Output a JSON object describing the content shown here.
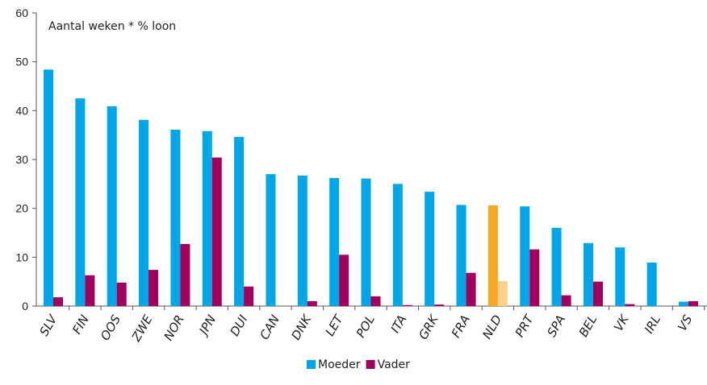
{
  "chart_data": {
    "type": "bar",
    "title": "",
    "annotation": "Aantal weken * % loon",
    "xlabel": "",
    "ylabel": "",
    "ylim": [
      0,
      60
    ],
    "yticks": [
      0,
      10,
      20,
      30,
      40,
      50,
      60
    ],
    "grid": false,
    "legend_position": "bottom-center",
    "categories": [
      "SLV",
      "FIN",
      "OOS",
      "ZWE",
      "NOR",
      "JPN",
      "DUI",
      "CAN",
      "DNK",
      "LET",
      "POL",
      "ITA",
      "GRK",
      "FRA",
      "NLD",
      "PRT",
      "SPA",
      "BEL",
      "VK",
      "IRL",
      "VS"
    ],
    "highlight_category": "NLD",
    "series": [
      {
        "name": "Moeder",
        "color": "#00a6e8",
        "highlight_color": "#f7a823",
        "values": [
          48.4,
          42.5,
          40.9,
          38.1,
          36.1,
          35.8,
          34.6,
          27.0,
          26.7,
          26.2,
          26.1,
          25.0,
          23.4,
          20.7,
          20.6,
          20.4,
          16.0,
          12.9,
          12.0,
          8.9,
          0.9
        ]
      },
      {
        "name": "Vader",
        "color": "#a1005c",
        "highlight_color": "#fbd38f",
        "values": [
          1.8,
          6.3,
          4.8,
          7.4,
          12.7,
          30.4,
          4.0,
          0.0,
          1.0,
          10.5,
          2.0,
          0.2,
          0.3,
          6.8,
          5.1,
          11.6,
          2.2,
          5.0,
          0.4,
          0.0,
          1.0
        ]
      }
    ]
  }
}
